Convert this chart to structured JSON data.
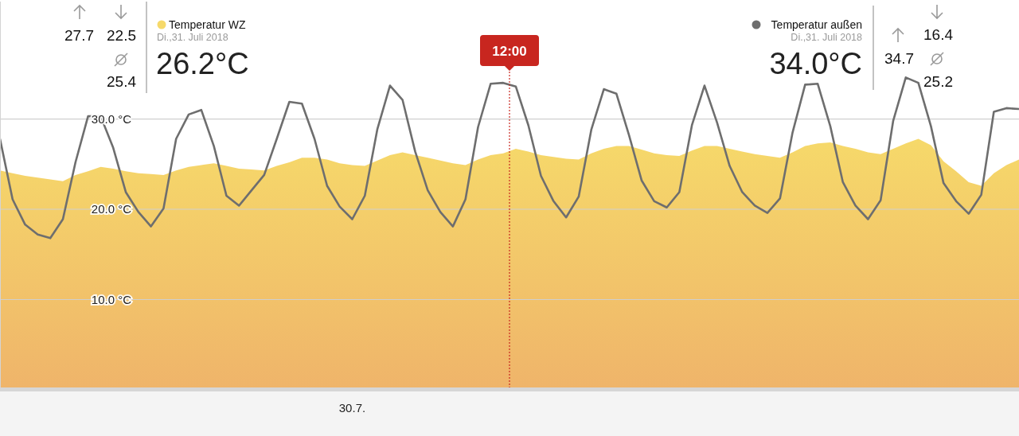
{
  "chart_data": {
    "type": "area",
    "categories": [
      null,
      null,
      null,
      null,
      null,
      null,
      null,
      null,
      null,
      null,
      null,
      null,
      null,
      null,
      null,
      null,
      null,
      null,
      null,
      null,
      null,
      null,
      null,
      null,
      null,
      null,
      null,
      null,
      "30.7.",
      null,
      null,
      null,
      null,
      null,
      null,
      null,
      null,
      null,
      null,
      null,
      null,
      null,
      null,
      null,
      null,
      null,
      null,
      null,
      null,
      null,
      null,
      null,
      null,
      null,
      null,
      null,
      null,
      null,
      null,
      null,
      null,
      null,
      null,
      null,
      null,
      null,
      null,
      null,
      null,
      null,
      null,
      null,
      null,
      null,
      null,
      null,
      null,
      null,
      null,
      null,
      null,
      null
    ],
    "series": [
      {
        "name": "Temperatur WZ",
        "color": "#f6d96a",
        "values": [
          24.3,
          24.0,
          23.7,
          23.5,
          23.3,
          23.1,
          23.8,
          24.2,
          24.7,
          24.5,
          24.2,
          24.0,
          23.9,
          23.8,
          24.3,
          24.7,
          24.9,
          25.1,
          24.8,
          24.5,
          24.4,
          24.3,
          24.8,
          25.2,
          25.7,
          25.7,
          25.5,
          25.1,
          24.9,
          24.8,
          25.4,
          26.0,
          26.3,
          26.0,
          25.7,
          25.4,
          25.1,
          24.9,
          25.5,
          26.0,
          26.2,
          26.7,
          26.4,
          26.0,
          25.8,
          25.6,
          25.5,
          26.2,
          26.7,
          27.0,
          27.0,
          26.6,
          26.2,
          26.0,
          25.9,
          26.5,
          27.0,
          27.0,
          26.7,
          26.4,
          26.1,
          25.9,
          25.7,
          26.3,
          27.0,
          27.3,
          27.4,
          27.0,
          26.7,
          26.3,
          26.1,
          26.7,
          27.3,
          27.8,
          27.1,
          25.3,
          24.2,
          23.0,
          22.6,
          24.0,
          24.9,
          25.5
        ]
      },
      {
        "name": "Temperatur außen",
        "type": "line",
        "color": "#6e6e6e",
        "values": [
          27.8,
          21.1,
          18.3,
          17.2,
          16.8,
          18.9,
          25.2,
          30.3,
          30.3,
          26.8,
          21.9,
          19.7,
          18.1,
          20.1,
          27.8,
          30.5,
          31.0,
          27.0,
          21.5,
          20.4,
          22.1,
          23.8,
          27.8,
          31.9,
          31.7,
          27.8,
          22.6,
          20.3,
          18.9,
          21.5,
          28.9,
          33.7,
          32.1,
          26.4,
          22.1,
          19.7,
          18.1,
          21.1,
          29.1,
          33.9,
          34.0,
          33.6,
          29.3,
          23.7,
          20.9,
          19.1,
          21.4,
          28.8,
          33.3,
          32.8,
          28.2,
          23.2,
          20.9,
          20.2,
          21.9,
          29.3,
          33.7,
          29.6,
          24.8,
          21.9,
          20.4,
          19.6,
          21.2,
          28.5,
          33.8,
          33.9,
          29.2,
          23.0,
          20.4,
          18.9,
          21.0,
          29.8,
          34.6,
          34.0,
          29.2,
          22.9,
          20.9,
          19.5,
          21.6,
          30.8,
          31.2,
          31.1
        ]
      }
    ],
    "ylim": [
      0,
      43
    ],
    "yticks": [
      {
        "value": 10,
        "label": "10.0 °C"
      },
      {
        "value": 20,
        "label": "20.0 °C"
      },
      {
        "value": 30,
        "label": "30.0 °C"
      }
    ],
    "grid": "y",
    "legend": "top",
    "annotations": [
      "12:00",
      "27.7",
      "22.5",
      "25.4",
      "Di.,31. Juli 2018",
      "26.2°C",
      "Di.,31. Juli 2018",
      "34.0°C",
      "34.7",
      "16.4",
      "25.2"
    ]
  }
}
